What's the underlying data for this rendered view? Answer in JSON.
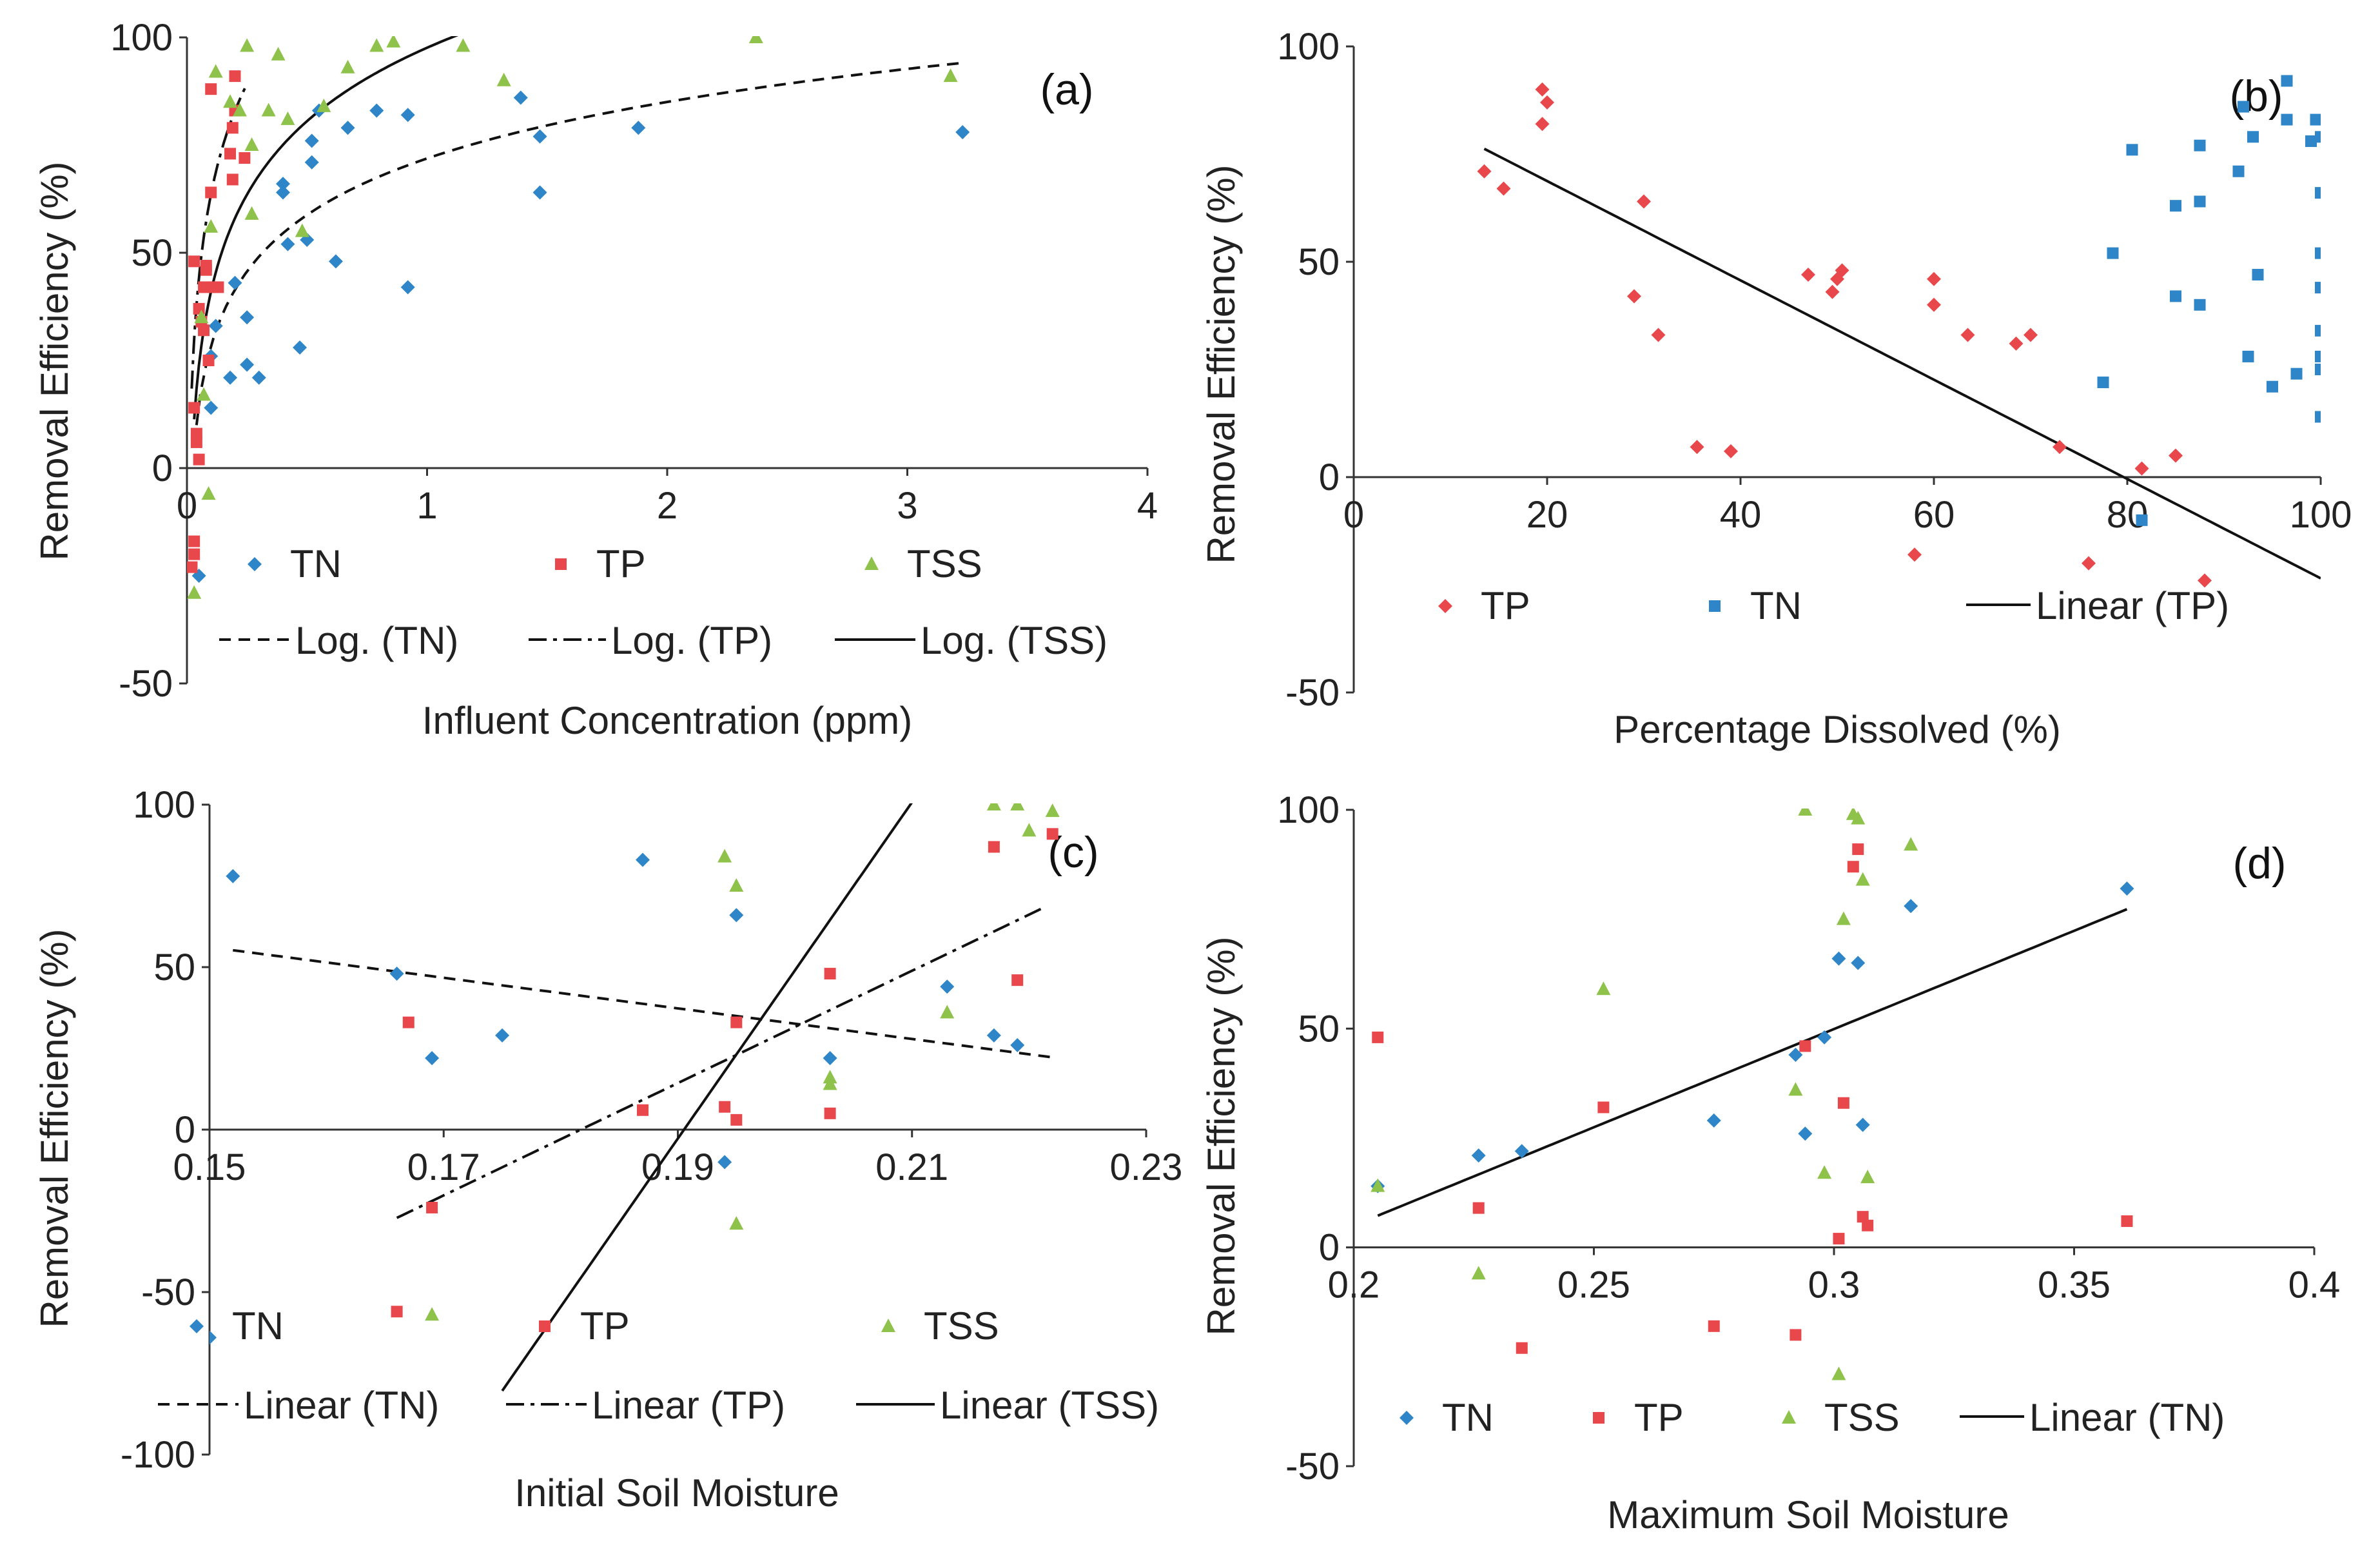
{
  "colors": {
    "TN": "#2e86c8",
    "TP": "#e8474c",
    "TSS": "#8fc24a",
    "line": "#111111",
    "axis": "#333333"
  },
  "chart_data": [
    {
      "panel": "(a)",
      "type": "scatter",
      "xlabel": "Influent Concentration (ppm)",
      "ylabel": "Removal Efficiency (%)",
      "xlim": [
        0,
        4
      ],
      "ylim": [
        -50,
        100
      ],
      "xticks": [
        "0",
        "1",
        "2",
        "3",
        "4"
      ],
      "yticks": [
        "-50",
        "0",
        "50",
        "100"
      ],
      "series": [
        {
          "name": "TN",
          "marker": "diamond",
          "points": [
            [
              0.1,
              14
            ],
            [
              0.1,
              26
            ],
            [
              0.12,
              33
            ],
            [
              0.18,
              21
            ],
            [
              0.2,
              43
            ],
            [
              0.25,
              35
            ],
            [
              0.25,
              24
            ],
            [
              0.3,
              21
            ],
            [
              0.4,
              64
            ],
            [
              0.4,
              66
            ],
            [
              0.42,
              52
            ],
            [
              0.47,
              28
            ],
            [
              0.5,
              53
            ],
            [
              0.52,
              71
            ],
            [
              0.52,
              76
            ],
            [
              0.55,
              83
            ],
            [
              0.62,
              48
            ],
            [
              0.67,
              79
            ],
            [
              0.79,
              83
            ],
            [
              0.92,
              82
            ],
            [
              0.92,
              42
            ],
            [
              1.39,
              86
            ],
            [
              1.47,
              77
            ],
            [
              1.47,
              64
            ],
            [
              1.88,
              79
            ],
            [
              3.23,
              78
            ],
            [
              0.05,
              -25
            ]
          ]
        },
        {
          "name": "TP",
          "marker": "square",
          "points": [
            [
              0.02,
              -23
            ],
            [
              0.03,
              -20
            ],
            [
              0.03,
              -17
            ],
            [
              0.03,
              14
            ],
            [
              0.04,
              6
            ],
            [
              0.04,
              8
            ],
            [
              0.05,
              2
            ],
            [
              0.03,
              48
            ],
            [
              0.05,
              37
            ],
            [
              0.06,
              34
            ],
            [
              0.07,
              32
            ],
            [
              0.07,
              42
            ],
            [
              0.08,
              46
            ],
            [
              0.08,
              47
            ],
            [
              0.09,
              25
            ],
            [
              0.1,
              88
            ],
            [
              0.1,
              64
            ],
            [
              0.11,
              42
            ],
            [
              0.13,
              42
            ],
            [
              0.18,
              73
            ],
            [
              0.19,
              67
            ],
            [
              0.19,
              79
            ],
            [
              0.2,
              83
            ],
            [
              0.2,
              91
            ],
            [
              0.24,
              72
            ]
          ]
        },
        {
          "name": "TSS",
          "marker": "triangle",
          "points": [
            [
              0.03,
              -29
            ],
            [
              0.06,
              35
            ],
            [
              0.07,
              17
            ],
            [
              0.09,
              -6
            ],
            [
              0.1,
              56
            ],
            [
              0.12,
              92
            ],
            [
              0.18,
              85
            ],
            [
              0.22,
              83
            ],
            [
              0.25,
              98
            ],
            [
              0.27,
              75
            ],
            [
              0.27,
              59
            ],
            [
              0.34,
              83
            ],
            [
              0.38,
              96
            ],
            [
              0.42,
              81
            ],
            [
              0.48,
              55
            ],
            [
              0.57,
              84
            ],
            [
              0.67,
              93
            ],
            [
              0.79,
              98
            ],
            [
              0.86,
              99
            ],
            [
              1.15,
              98
            ],
            [
              1.32,
              90
            ],
            [
              2.37,
              100
            ],
            [
              3.18,
              91
            ]
          ]
        }
      ],
      "trendlines": [
        {
          "name": "Log. (TN)",
          "style": "dashed",
          "a": 18.93,
          "b": 71.89,
          "x_range": [
            0.03,
            3.23
          ]
        },
        {
          "name": "Log. (TP)",
          "style": "dashdot",
          "a": 28.0,
          "b": 128.0,
          "x_range": [
            0.02,
            0.25
          ]
        },
        {
          "name": "Log. (TSS)",
          "style": "solid",
          "a": 24.6,
          "b": 97.6,
          "x_range": [
            0.03,
            1.2
          ]
        }
      ],
      "legend": [
        "TN",
        "TP",
        "TSS",
        "Log. (TN)",
        "Log. (TP)",
        "Log. (TSS)"
      ]
    },
    {
      "panel": "(b)",
      "type": "scatter",
      "xlabel": "Percentage Dissolved (%)",
      "ylabel": "Removal Efficiency (%)",
      "xlim": [
        0,
        100
      ],
      "ylim": [
        -50,
        100
      ],
      "xticks": [
        "0",
        "20",
        "40",
        "60",
        "80",
        "100"
      ],
      "yticks": [
        "-50",
        "0",
        "50",
        "100"
      ],
      "series": [
        {
          "name": "TP",
          "marker": "diamond",
          "points": [
            [
              13.5,
              71
            ],
            [
              15.5,
              67
            ],
            [
              19.5,
              82
            ],
            [
              19.5,
              90
            ],
            [
              20,
              87
            ],
            [
              29,
              42
            ],
            [
              30,
              64
            ],
            [
              31.5,
              33
            ],
            [
              35.5,
              7
            ],
            [
              39,
              6
            ],
            [
              47,
              47
            ],
            [
              49.5,
              43
            ],
            [
              50,
              46
            ],
            [
              50.5,
              48
            ],
            [
              58,
              -18
            ],
            [
              60,
              46
            ],
            [
              60,
              40
            ],
            [
              63.5,
              33
            ],
            [
              68.5,
              31
            ],
            [
              70,
              33
            ],
            [
              73,
              7
            ],
            [
              76,
              -20
            ],
            [
              81.5,
              2
            ],
            [
              85,
              5
            ],
            [
              88,
              -24
            ]
          ]
        },
        {
          "name": "TN",
          "marker": "square",
          "points": [
            [
              77.5,
              22
            ],
            [
              78.5,
              52
            ],
            [
              80.5,
              76
            ],
            [
              81.5,
              -10
            ],
            [
              85,
              63
            ],
            [
              85,
              42
            ],
            [
              87.5,
              64
            ],
            [
              87.5,
              77
            ],
            [
              87.5,
              40
            ],
            [
              91.5,
              71
            ],
            [
              92,
              86
            ],
            [
              92.5,
              28
            ],
            [
              93,
              79
            ],
            [
              93.5,
              47
            ],
            [
              95,
              21
            ],
            [
              96.5,
              92
            ],
            [
              96.5,
              83
            ],
            [
              97.5,
              24
            ],
            [
              99,
              78
            ],
            [
              99.5,
              83
            ],
            [
              100,
              79
            ],
            [
              100,
              66
            ],
            [
              100,
              52
            ],
            [
              100,
              44
            ],
            [
              100,
              34
            ],
            [
              100,
              28
            ],
            [
              100,
              25
            ],
            [
              100,
              14
            ]
          ]
        }
      ],
      "trendlines": [
        {
          "name": "Linear (TP)",
          "style": "solid",
          "slope": -1.153,
          "intercept": 91.8,
          "x_range": [
            13.5,
            100
          ]
        }
      ],
      "legend": [
        "TP",
        "TN",
        "Linear (TP)"
      ]
    },
    {
      "panel": "(c)",
      "type": "scatter",
      "xlabel": "Initial Soil Moisture",
      "ylabel": "Removal Efficiency (%)",
      "xlim": [
        0.15,
        0.23
      ],
      "ylim": [
        -100,
        100
      ],
      "xticks": [
        "0.15",
        "0.17",
        "0.19",
        "0.21",
        "0.23"
      ],
      "yticks": [
        "-100",
        "-50",
        "0",
        "50",
        "100"
      ],
      "series": [
        {
          "name": "TN",
          "marker": "diamond",
          "points": [
            [
              0.152,
              78
            ],
            [
              0.166,
              48
            ],
            [
              0.169,
              22
            ],
            [
              0.175,
              29
            ],
            [
              0.187,
              83
            ],
            [
              0.194,
              -10
            ],
            [
              0.195,
              66
            ],
            [
              0.203,
              22
            ],
            [
              0.213,
              44
            ],
            [
              0.217,
              29
            ],
            [
              0.219,
              26
            ],
            [
              0.15,
              -64
            ]
          ]
        },
        {
          "name": "TP",
          "marker": "square",
          "points": [
            [
              0.166,
              -56
            ],
            [
              0.167,
              33
            ],
            [
              0.169,
              -24
            ],
            [
              0.187,
              6
            ],
            [
              0.194,
              7
            ],
            [
              0.195,
              3
            ],
            [
              0.195,
              33
            ],
            [
              0.203,
              48
            ],
            [
              0.203,
              5
            ],
            [
              0.217,
              87
            ],
            [
              0.219,
              46
            ],
            [
              0.222,
              91
            ]
          ]
        },
        {
          "name": "TSS",
          "marker": "triangle",
          "points": [
            [
              0.169,
              -57
            ],
            [
              0.194,
              84
            ],
            [
              0.195,
              75
            ],
            [
              0.195,
              -29
            ],
            [
              0.203,
              16
            ],
            [
              0.203,
              14
            ],
            [
              0.213,
              36
            ],
            [
              0.217,
              100
            ],
            [
              0.219,
              100
            ],
            [
              0.22,
              92
            ],
            [
              0.222,
              98
            ]
          ]
        }
      ],
      "trendlines": [
        {
          "name": "Linear (TN)",
          "style": "dashed",
          "slope": -471,
          "intercept": 126.8,
          "x_range": [
            0.152,
            0.222
          ]
        },
        {
          "name": "Linear (TP)",
          "style": "dashdot",
          "slope": 1728,
          "intercept": -314,
          "x_range": [
            0.166,
            0.221
          ]
        },
        {
          "name": "Linear (TSS)",
          "style": "solid",
          "slope": 5175,
          "intercept": -986,
          "x_range": [
            0.175,
            0.22
          ]
        }
      ],
      "legend": [
        "TN",
        "TP",
        "TSS",
        "Linear (TN)",
        "Linear (TP)",
        "Linear (TSS)"
      ]
    },
    {
      "panel": "(d)",
      "type": "scatter",
      "xlabel": "Maximum Soil Moisture",
      "ylabel": "Removal Efficiency (%)",
      "xlim": [
        0.2,
        0.4
      ],
      "ylim": [
        -50,
        100
      ],
      "xticks": [
        "0.2",
        "0.25",
        "0.3",
        "0.35",
        "0.4"
      ],
      "yticks": [
        "-50",
        "0",
        "50",
        "100"
      ],
      "series": [
        {
          "name": "TN",
          "marker": "diamond",
          "points": [
            [
              0.205,
              14
            ],
            [
              0.226,
              21
            ],
            [
              0.235,
              22
            ],
            [
              0.275,
              29
            ],
            [
              0.292,
              44
            ],
            [
              0.294,
              26
            ],
            [
              0.298,
              48
            ],
            [
              0.301,
              66
            ],
            [
              0.305,
              65
            ],
            [
              0.306,
              28
            ],
            [
              0.316,
              78
            ],
            [
              0.361,
              82
            ]
          ]
        },
        {
          "name": "TP",
          "marker": "square",
          "points": [
            [
              0.205,
              48
            ],
            [
              0.226,
              9
            ],
            [
              0.235,
              -23
            ],
            [
              0.252,
              32
            ],
            [
              0.275,
              -18
            ],
            [
              0.292,
              -20
            ],
            [
              0.294,
              46
            ],
            [
              0.301,
              2
            ],
            [
              0.302,
              33
            ],
            [
              0.304,
              87
            ],
            [
              0.305,
              91
            ],
            [
              0.306,
              7
            ],
            [
              0.307,
              5
            ],
            [
              0.361,
              6
            ]
          ]
        },
        {
          "name": "TSS",
          "marker": "triangle",
          "points": [
            [
              0.205,
              14
            ],
            [
              0.226,
              -6
            ],
            [
              0.252,
              59
            ],
            [
              0.292,
              36
            ],
            [
              0.294,
              100
            ],
            [
              0.298,
              17
            ],
            [
              0.301,
              -29
            ],
            [
              0.302,
              75
            ],
            [
              0.304,
              99
            ],
            [
              0.305,
              98
            ],
            [
              0.306,
              84
            ],
            [
              0.307,
              16
            ],
            [
              0.316,
              92
            ]
          ]
        }
      ],
      "trendlines": [
        {
          "name": "Linear (TN)",
          "style": "solid",
          "slope": 449,
          "intercept": -84.8,
          "x_range": [
            0.205,
            0.361
          ]
        }
      ],
      "legend": [
        "TN",
        "TP",
        "TSS",
        "Linear (TN)"
      ]
    }
  ]
}
